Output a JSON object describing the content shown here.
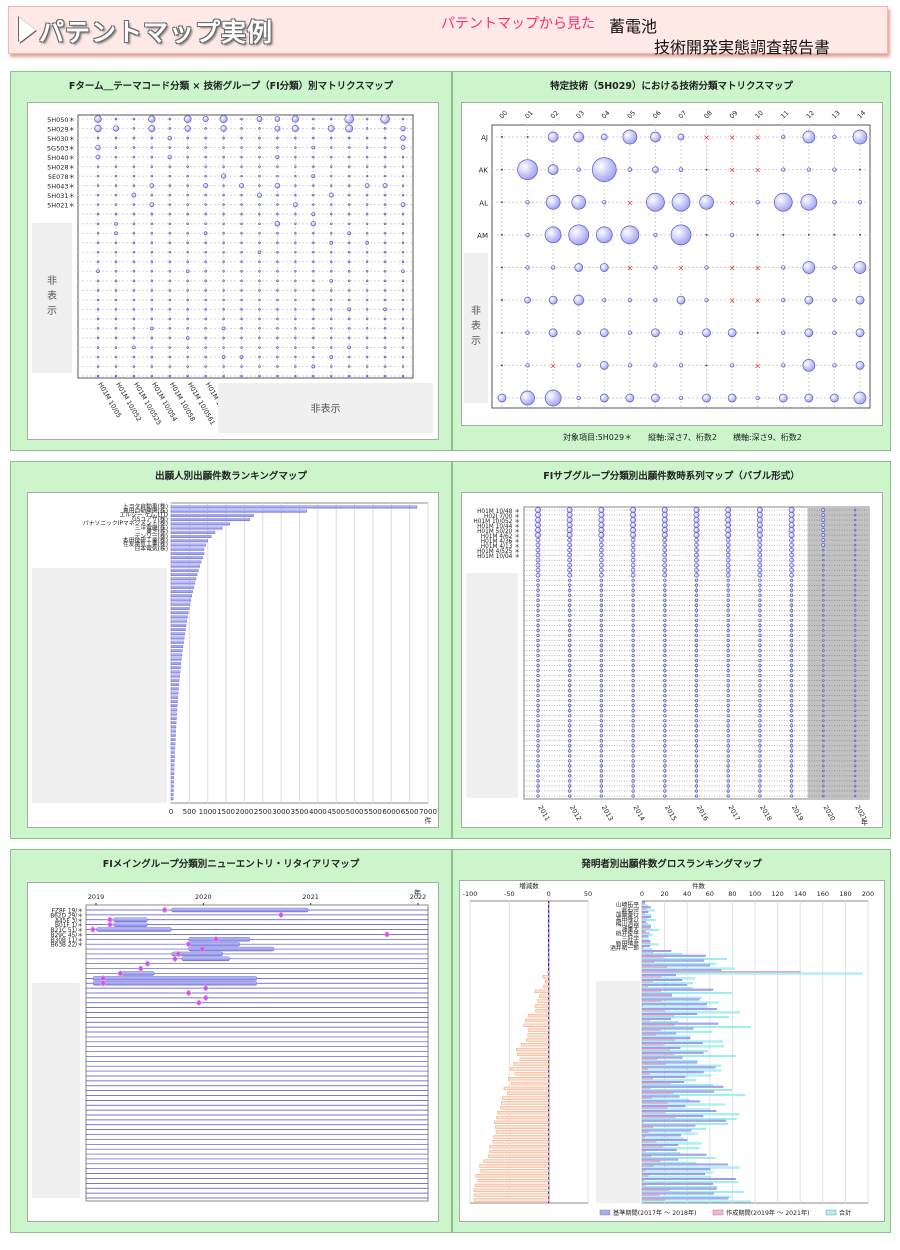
{
  "header": {
    "title": "パテントマップ実例",
    "subtitle": "パテントマップから見た",
    "right_line1": "蓄電池",
    "right_line2": "技術開発実態調査報告書"
  },
  "panels": [
    {
      "title": "Fターム＿テーマコード分類 × 技術グループ（FI分類）別マトリクスマップ"
    },
    {
      "title": "特定技術（5H029）における技術分類マトリクスマップ"
    },
    {
      "title": "出願人別出願件数ランキングマップ"
    },
    {
      "title": "FIサブグループ分類別出願件数時系列マップ（バブル形式）"
    },
    {
      "title": "FIメイングループ分類別ニューエントリ・リタイアリマップ"
    },
    {
      "title": "発明者別出願件数グロスランキングマップ"
    }
  ],
  "hidden_label": "非表示",
  "hidden_vertical": "非表示",
  "p2_caption": "対象項目:5H029＊　　縦軸:深さ7、桁数2　　横軸:深さ9、桁数2",
  "colors": {
    "bubble": "#9d9ff0",
    "bar": "#7f82e6",
    "accent_red": "#e23a3a",
    "panel_bg": "#ccf5cc",
    "pink": "#ff88cc",
    "cyan": "#66e0e6",
    "orange": "#f2a070"
  },
  "chart_data": [
    {
      "type": "scatter",
      "id": "p1",
      "y_labels": [
        "5H050＊",
        "5H029＊",
        "5H030＊",
        "5G503＊",
        "5H040＊",
        "5H028＊",
        "5E078＊",
        "5H043＊",
        "5H031＊",
        "5H021＊"
      ],
      "x_labels": [
        "H01M 10/05",
        "H01M 10/052",
        "H01M 10/0525",
        "H01M 10/054",
        "H01M 10/058",
        "H01M 10/0561",
        "H01M 10/0562"
      ]
    },
    {
      "type": "scatter",
      "id": "p2",
      "x_labels": [
        "00",
        "01",
        "02",
        "03",
        "04",
        "05",
        "06",
        "07",
        "08",
        "09",
        "10",
        "11",
        "12",
        "13",
        "14"
      ],
      "y_labels": [
        "AJ",
        "AK",
        "AL",
        "AM"
      ]
    },
    {
      "type": "bar",
      "id": "p3",
      "categories": [
        "トヨタ自動車(株)",
        "豊田自動織機(株)",
        "エルジー ケム,LTD",
        "GSユアサ(株)",
        "パナソニックIPマネジメント(株)",
        "三洋電機(株)",
        "東芝(株)",
        "デンソー(株)",
        "本田技研工業(株)",
        "住友電気工業(株)",
        "日本電気(株)"
      ],
      "values": [
        6700,
        3700,
        2250,
        2150,
        1600,
        1400,
        1200,
        1100,
        1000,
        950,
        900
      ],
      "x_ticks": [
        "0",
        "500",
        "1000",
        "1500",
        "2000",
        "2500",
        "3000",
        "3500",
        "4000",
        "4500",
        "5000",
        "5500",
        "6000",
        "6500",
        "7000"
      ],
      "x_unit": "件",
      "xlim": [
        0,
        7000
      ]
    },
    {
      "type": "scatter",
      "id": "p4",
      "y_labels": [
        "H01M 10/48 ＊",
        "H02J 7/00 ＊",
        "H01M 10/052 ＊",
        "H01M 10/44 ＊",
        "H01M 50/20 ＊",
        "H01M 4/62 ＊",
        "H01M 4/36 ＊",
        "H01M 4/13 ＊",
        "H01M 4/525 ＊",
        "H01M 10/04 ＊"
      ],
      "x_labels": [
        "2011",
        "2012",
        "2013",
        "2014",
        "2015",
        "2016",
        "2017",
        "2018",
        "2019",
        "2020",
        "2021"
      ],
      "x_unit": "年"
    },
    {
      "type": "bar",
      "id": "p5",
      "y_labels": [
        "FZ8F 19/＊",
        "B62D 29/＊",
        "A45F 3/＊",
        "B01F 1/＊",
        "B21C 51/＊",
        "B29C 45/＊",
        "B30B 11/＊",
        "B63B 22/＊"
      ],
      "x_labels": [
        "2019",
        "2020",
        "2021",
        "2022"
      ],
      "x_unit": "年"
    },
    {
      "type": "bar",
      "id": "p6",
      "categories": [
        "山崎拓平",
        "倉石守",
        "加藤泰行",
        "高田隆介",
        "梅山浩哉",
        "鴻巣大",
        "桃井俊平",
        "三好学",
        "新田晴彦",
        "酒井祐一郎"
      ],
      "left_ticks": [
        "-100",
        "-50",
        "0",
        "50"
      ],
      "left_label": "増減数",
      "right_ticks": [
        "0",
        "20",
        "40",
        "60",
        "80",
        "100",
        "120",
        "140",
        "160",
        "180",
        "200"
      ],
      "right_label": "件数",
      "legend": [
        "基準期間(2017年 ～ 2018年)",
        "作成期間(2019年 ～ 2021年)",
        "合計"
      ]
    }
  ]
}
